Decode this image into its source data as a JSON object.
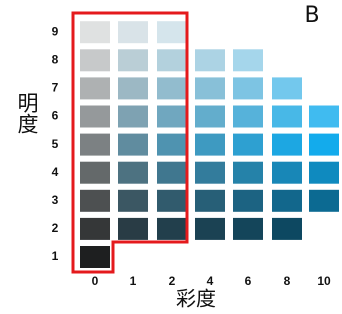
{
  "label": "B",
  "y_axis": {
    "title": "明度",
    "labels": [
      "1",
      "2",
      "3",
      "4",
      "5",
      "6",
      "7",
      "8",
      "9"
    ]
  },
  "x_axis": {
    "title": "彩度",
    "labels": [
      "0",
      "1",
      "2",
      "4",
      "6",
      "8",
      "10"
    ]
  }
}
